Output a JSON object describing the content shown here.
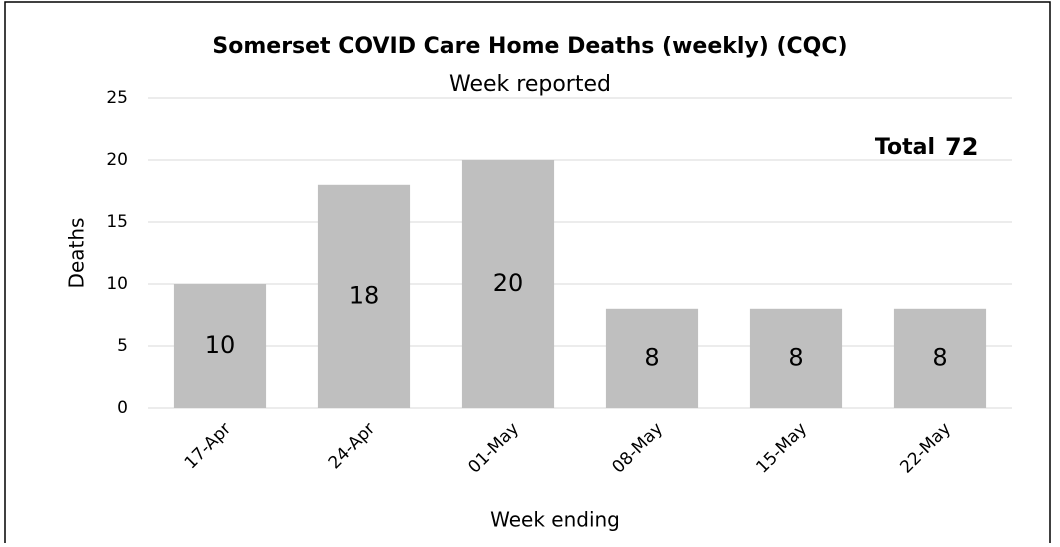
{
  "chart_data": {
    "type": "bar",
    "title": "Somerset COVID Care Home Deaths (weekly) (CQC)",
    "subtitle": "Week reported",
    "x_label": "Week ending",
    "y_label": "Deaths",
    "annotation": {
      "label": "Total",
      "value": 72
    },
    "categories": [
      "17-Apr",
      "24-Apr",
      "01-May",
      "08-May",
      "15-May",
      "22-May"
    ],
    "values": [
      10,
      18,
      20,
      8,
      8,
      8
    ],
    "color": "#bfbfbf",
    "ylim": [
      0,
      25
    ],
    "yticks": [
      0,
      5,
      10,
      15,
      20,
      25
    ],
    "grid": true
  }
}
